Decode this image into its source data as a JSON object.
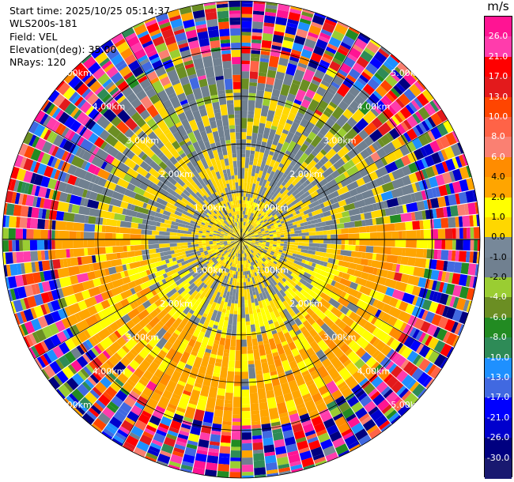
{
  "info": {
    "start_time": "Start time: 2025/10/25 05:14:37",
    "station": "WLS200s-181",
    "field": "Field: VEL",
    "elevation": "Elevation(deg): 35.00",
    "nrays": "NRays: 120"
  },
  "chart_data": {
    "type": "polar_ppi",
    "field": "VEL",
    "units": "m/s",
    "nrays": 120,
    "elevation_deg": 35.0,
    "range_max_km": 5.0,
    "range_rings_km": [
      1,
      2,
      3,
      4,
      5
    ],
    "range_labels": [
      "1.00km",
      "2.00km",
      "3.00km",
      "4.00km",
      "5.00km"
    ],
    "azimuth_lines_deg": [
      0,
      30,
      60,
      90,
      120,
      150,
      180,
      210,
      240,
      270,
      300,
      330
    ],
    "colorbar": {
      "label": "m/s",
      "min": -30,
      "max": 30,
      "ticks": [
        "26.0",
        "21.0",
        "17.0",
        "13.0",
        "10.0",
        "8.0",
        "6.0",
        "4.0",
        "2.0",
        "1.0",
        "0.0",
        "-1.0",
        "-2.0",
        "-4.0",
        "-6.0",
        "-8.0",
        "-10.0",
        "-13.0",
        "-17.0",
        "-21.0",
        "-26.0",
        "-30.0"
      ],
      "levels": [
        30,
        26,
        21,
        17,
        13,
        10,
        8,
        6,
        4,
        2,
        1,
        0,
        -1,
        -2,
        -4,
        -6,
        -8,
        -10,
        -13,
        -17,
        -21,
        -26,
        -30
      ],
      "colors": [
        "#ff1493",
        "#ff3cac",
        "#ff0000",
        "#e31a1c",
        "#ff4500",
        "#ff6347",
        "#fa8072",
        "#ff8c00",
        "#ffa500",
        "#ffff00",
        "#ffd700",
        "#778899",
        "#708090",
        "#9acd32",
        "#6b8e23",
        "#228b22",
        "#2e8b57",
        "#1e90ff",
        "#4169e1",
        "#0000ff",
        "#0000cd",
        "#000080",
        "#191970"
      ]
    }
  }
}
